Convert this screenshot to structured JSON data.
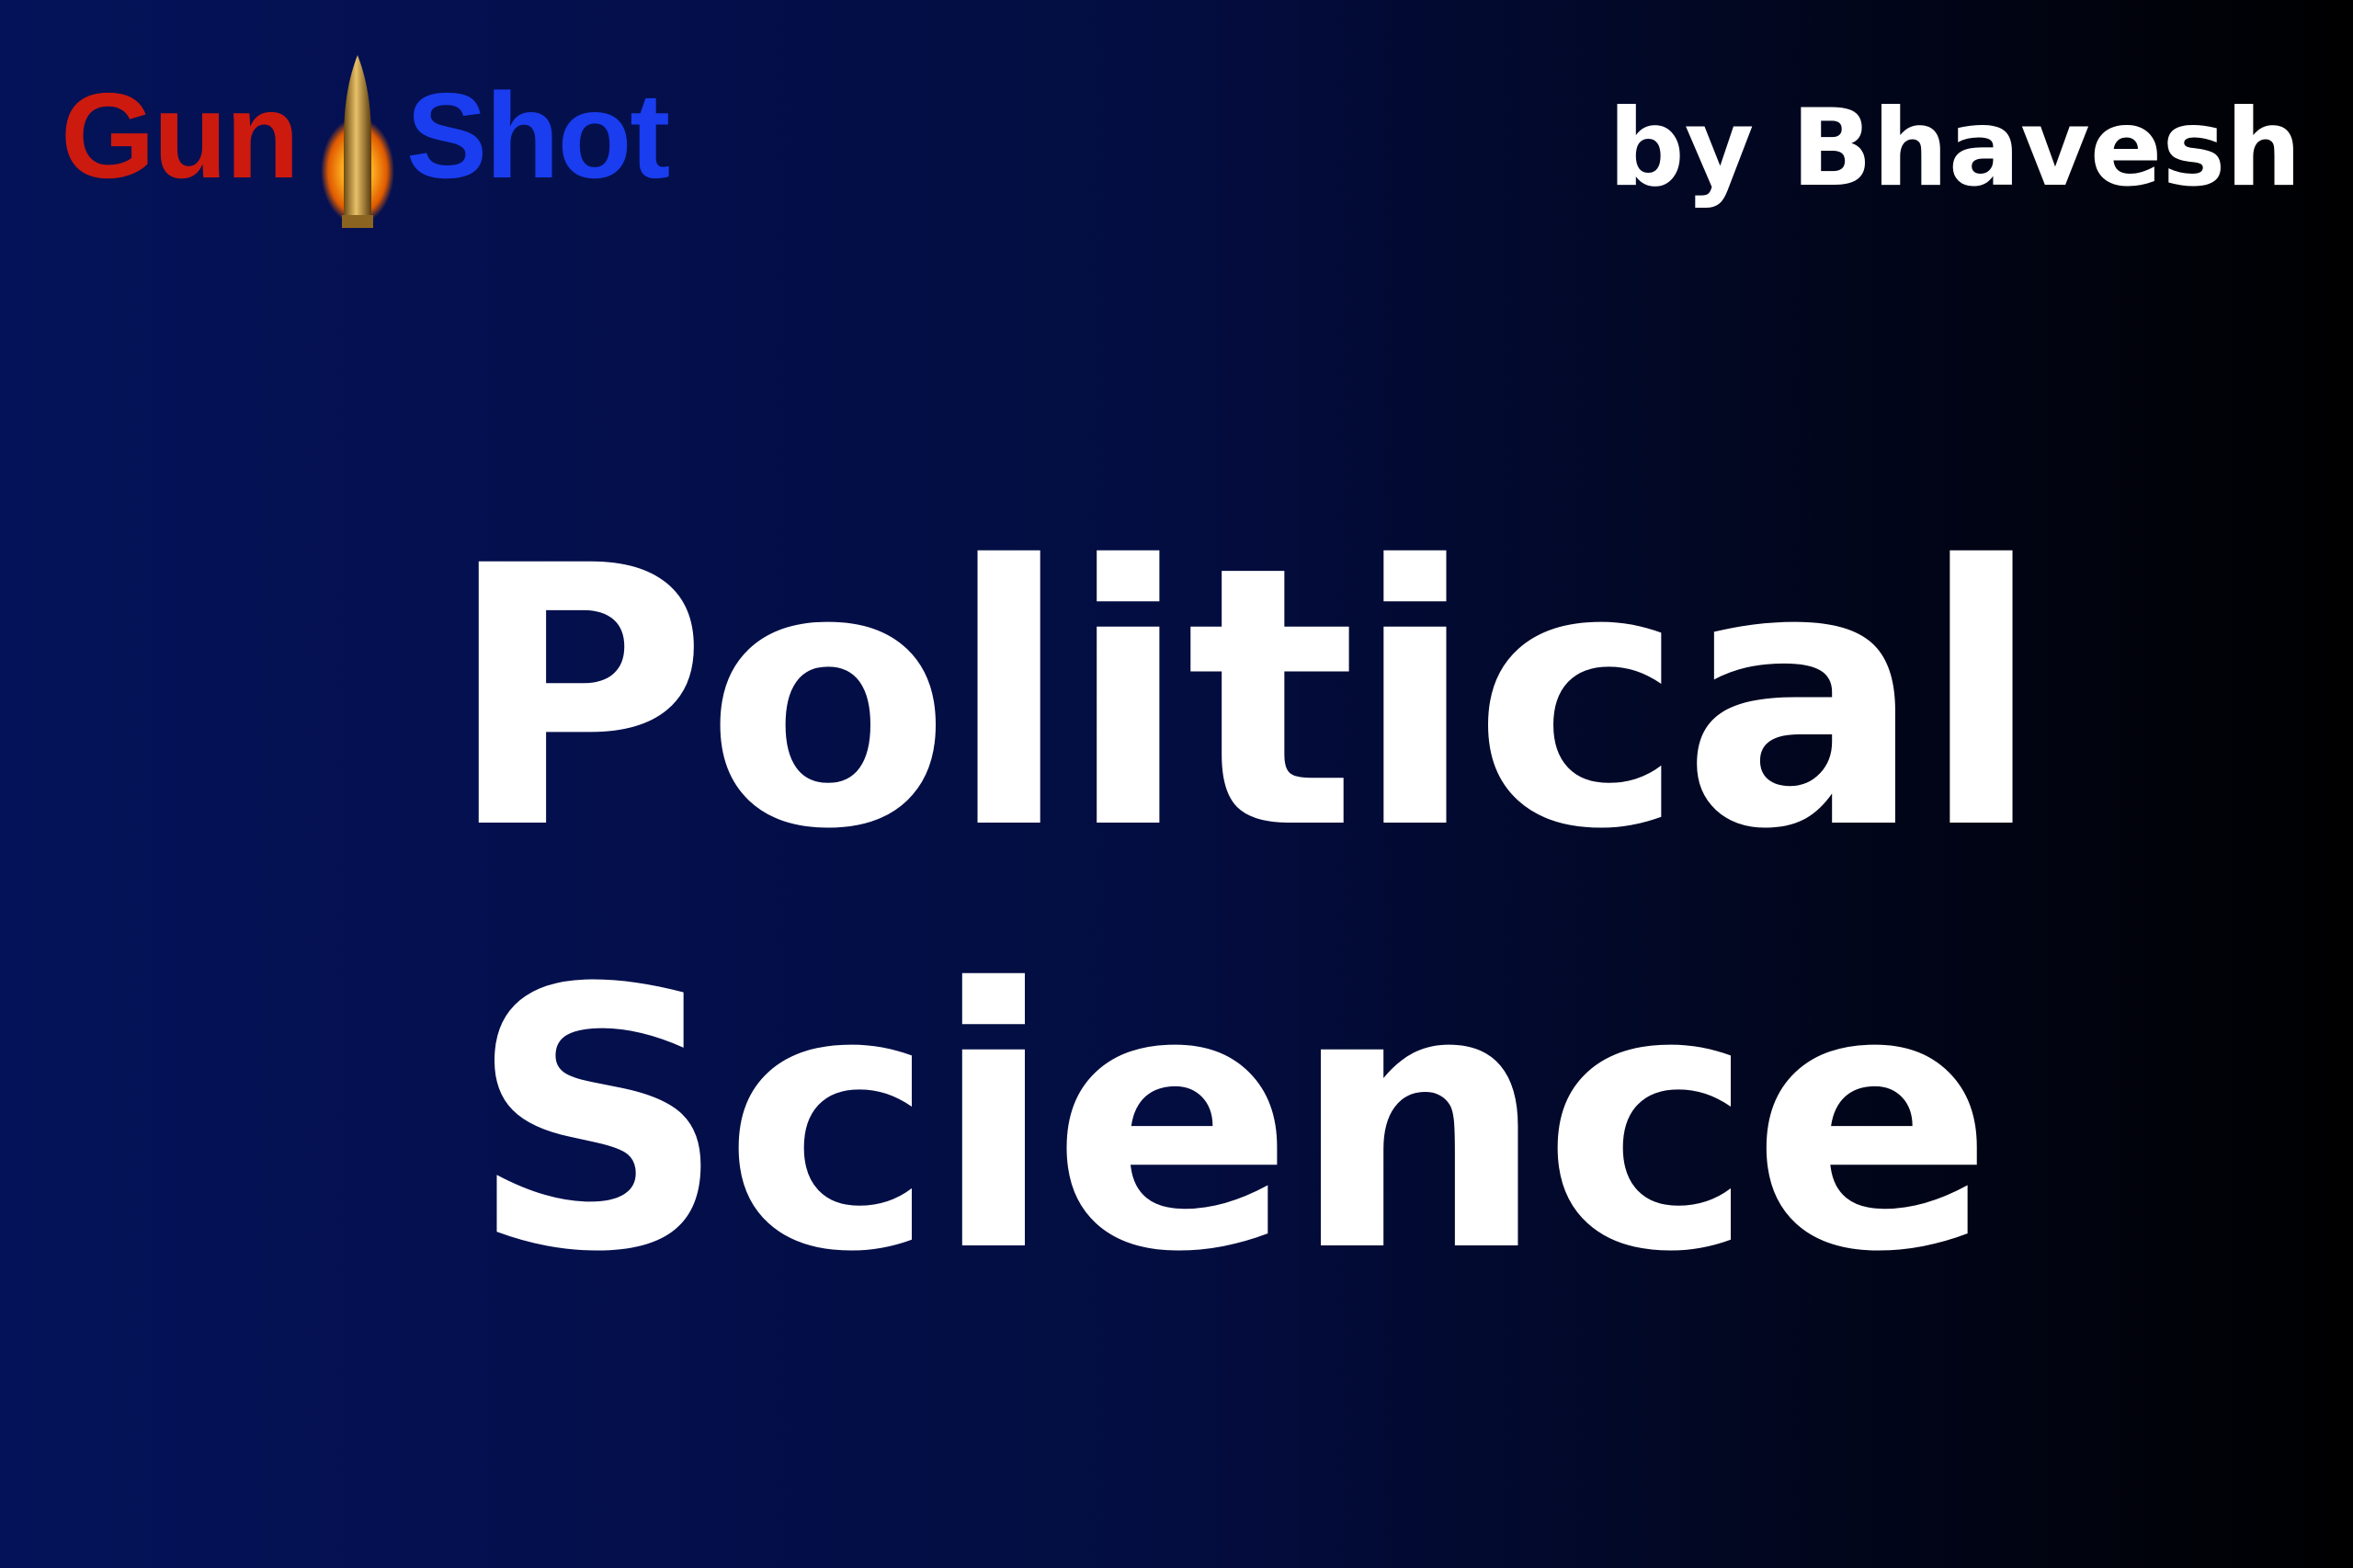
{
  "logo": {
    "part1": "Gun",
    "part2": "Shot",
    "part1_color": "#cc1a0e",
    "part2_color": "#1a3df0",
    "icon": "bullet-icon"
  },
  "byline": "by Bhavesh",
  "title": {
    "line1": "Political",
    "line2": "Science"
  },
  "colors": {
    "background_start": "#041259",
    "background_end": "#000000",
    "title": "#ffffff"
  }
}
